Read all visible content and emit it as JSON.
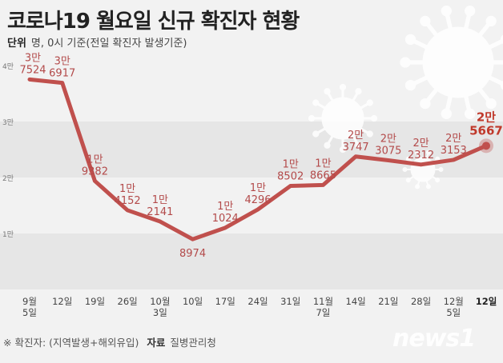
{
  "title": "코로나19 월요일 신규 확진자 현황",
  "unit": {
    "key": "단위",
    "text": "명, 0시 기준(전일 확진자 발생기준)"
  },
  "footnote": {
    "note": "※ 확진자: (지역발생+해외유입)",
    "source_key": "자료",
    "source": "질병관리청"
  },
  "logo": "news1",
  "colors": {
    "line": "#c0504d",
    "band": "#e6e6e6",
    "background": "#f2f2f2",
    "label": "#b34a4a"
  },
  "chart_data": {
    "type": "line",
    "title": "코로나19 월요일 신규 확진자 현황",
    "ylim": [
      0,
      40000
    ],
    "yticks": [
      {
        "value": 10000,
        "label": "1만"
      },
      {
        "value": 20000,
        "label": "2만"
      },
      {
        "value": 30000,
        "label": "3만"
      },
      {
        "value": 40000,
        "label": "4만"
      }
    ],
    "categories": [
      [
        "9월",
        "5일"
      ],
      [
        "12일"
      ],
      [
        "19일"
      ],
      [
        "26일"
      ],
      [
        "10월",
        "3일"
      ],
      [
        "10일"
      ],
      [
        "17일"
      ],
      [
        "24일"
      ],
      [
        "31일"
      ],
      [
        "11월",
        "7일"
      ],
      [
        "14일"
      ],
      [
        "21일"
      ],
      [
        "28일"
      ],
      [
        "12월",
        "5일"
      ],
      [
        "12일"
      ]
    ],
    "values": [
      37524,
      36917,
      19382,
      14152,
      12141,
      8974,
      11024,
      14296,
      18502,
      18665,
      23747,
      23075,
      22312,
      23153,
      25667
    ],
    "point_labels": [
      [
        "3만",
        "7524"
      ],
      [
        "3만",
        "6917"
      ],
      [
        "1만",
        "9382"
      ],
      [
        "1만",
        "4152"
      ],
      [
        "1만",
        "2141"
      ],
      [
        "8974"
      ],
      [
        "1만",
        "1024"
      ],
      [
        "1만",
        "4296"
      ],
      [
        "1만",
        "8502"
      ],
      [
        "1만",
        "8665"
      ],
      [
        "2만",
        "3747"
      ],
      [
        "2만",
        "3075"
      ],
      [
        "2만",
        "2312"
      ],
      [
        "2만",
        "3153"
      ],
      [
        "2만",
        "5667"
      ]
    ],
    "grid": "alternating-bands",
    "legend": "none"
  }
}
